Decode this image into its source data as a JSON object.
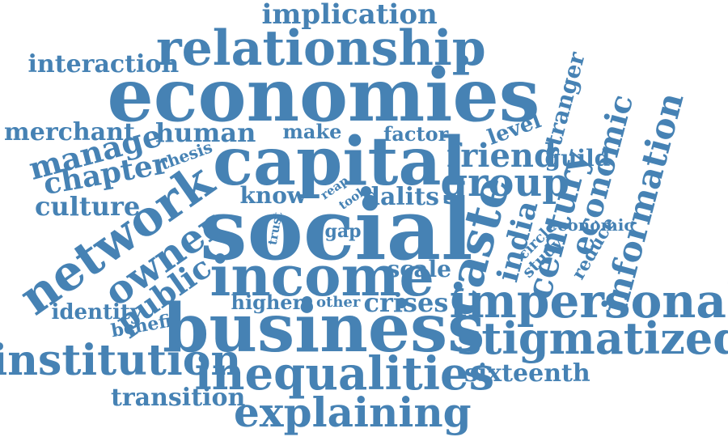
{
  "colors": {
    "word": "#4682b4",
    "background": "#ffffff"
  },
  "words": [
    "implication",
    "relationship",
    "interaction",
    "economies",
    "stranger",
    "merchant",
    "human",
    "make",
    "factor",
    "level",
    "manage",
    "thesis",
    "capital",
    "friend",
    "guild",
    "economic",
    "information",
    "chapter",
    "network",
    "group",
    "know",
    "reap",
    "tool",
    "dalits",
    "culture",
    "century",
    "economic",
    "social",
    "trust",
    "gap",
    "caste",
    "india",
    "circle",
    "reduce",
    "owner",
    "study",
    "income",
    "public",
    "scale",
    "higher",
    "other",
    "crises",
    "identity",
    "benefit",
    "impersonal",
    "business",
    "stigmatized",
    "institution",
    "inequalities",
    "sixteenth",
    "transition",
    "explaining"
  ]
}
